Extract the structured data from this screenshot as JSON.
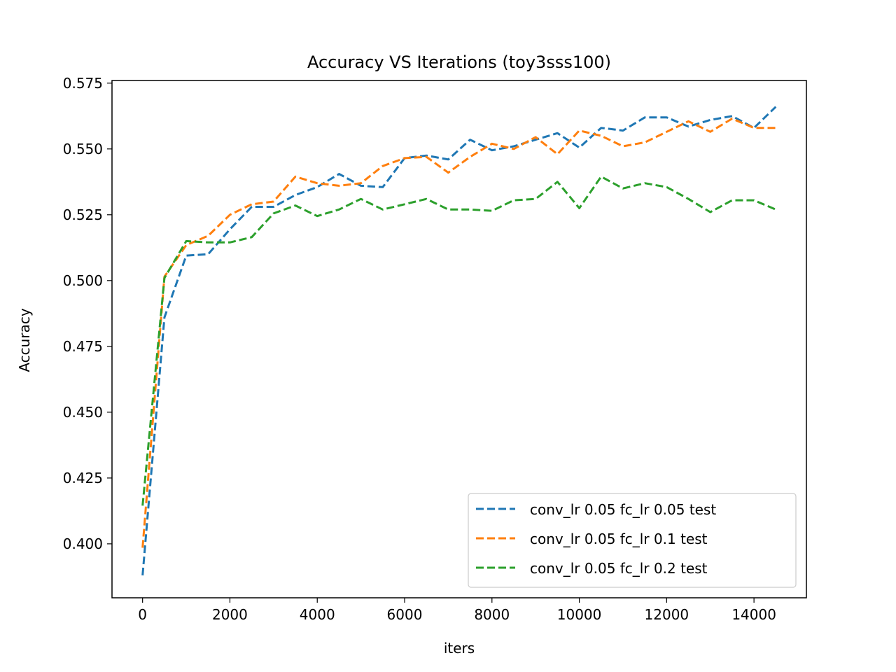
{
  "chart_data": {
    "type": "line",
    "title": "Accuracy VS Iterations (toy3sss100)",
    "xlabel": "iters",
    "ylabel": "Accuracy",
    "xlim": [
      -700,
      15200
    ],
    "ylim": [
      0.3795,
      0.576
    ],
    "xticks": [
      0,
      2000,
      4000,
      6000,
      8000,
      10000,
      12000,
      14000
    ],
    "yticks": [
      0.4,
      0.425,
      0.45,
      0.475,
      0.5,
      0.525,
      0.55,
      0.575
    ],
    "ytick_labels": [
      "0.400",
      "0.425",
      "0.450",
      "0.475",
      "0.500",
      "0.525",
      "0.550",
      "0.575"
    ],
    "grid": false,
    "legend_position": "lower right",
    "line_style": "dashed",
    "x": [
      0,
      500,
      1000,
      1500,
      2000,
      2500,
      3000,
      3500,
      4000,
      4500,
      5000,
      5500,
      6000,
      6500,
      7000,
      7500,
      8000,
      8500,
      9000,
      9500,
      10000,
      10500,
      11000,
      11500,
      12000,
      12500,
      13000,
      13500,
      14000,
      14500
    ],
    "series": [
      {
        "name": "conv_lr 0.05 fc_lr 0.05 test",
        "color": "#1f77b4",
        "values": [
          0.388,
          0.486,
          0.5095,
          0.51,
          0.5195,
          0.528,
          0.528,
          0.5325,
          0.5355,
          0.5405,
          0.536,
          0.5355,
          0.5465,
          0.5475,
          0.546,
          0.5535,
          0.5495,
          0.551,
          0.5535,
          0.556,
          0.5505,
          0.558,
          0.557,
          0.562,
          0.562,
          0.5585,
          0.561,
          0.5625,
          0.558,
          0.566
        ]
      },
      {
        "name": "conv_lr 0.05 fc_lr 0.1 test",
        "color": "#ff7f0e",
        "values": [
          0.3985,
          0.5015,
          0.5135,
          0.517,
          0.525,
          0.529,
          0.53,
          0.5395,
          0.537,
          0.536,
          0.537,
          0.5435,
          0.5465,
          0.547,
          0.541,
          0.547,
          0.552,
          0.55,
          0.5545,
          0.548,
          0.557,
          0.555,
          0.551,
          0.5525,
          0.5565,
          0.5605,
          0.5565,
          0.5615,
          0.558,
          0.558
        ]
      },
      {
        "name": "conv_lr 0.05 fc_lr 0.2 test",
        "color": "#2ca02c",
        "values": [
          0.4145,
          0.501,
          0.515,
          0.5145,
          0.5145,
          0.5165,
          0.5255,
          0.5285,
          0.5245,
          0.527,
          0.531,
          0.527,
          0.529,
          0.531,
          0.527,
          0.527,
          0.5265,
          0.5305,
          0.531,
          0.5375,
          0.5275,
          0.5395,
          0.535,
          0.537,
          0.5355,
          0.531,
          0.526,
          0.5305,
          0.5305,
          0.527
        ]
      }
    ]
  }
}
